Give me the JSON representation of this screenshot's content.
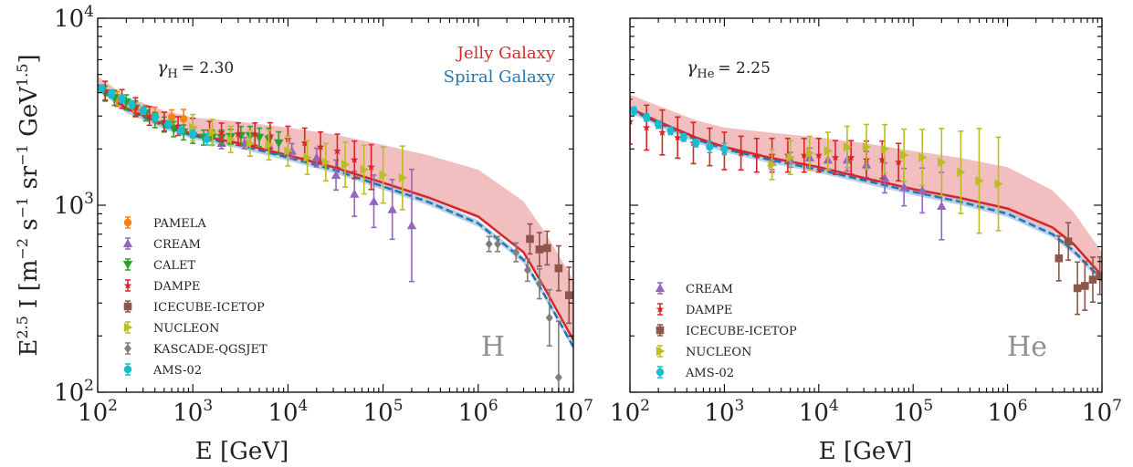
{
  "figure": {
    "ylabel_main": "E",
    "ylabel_exp": "2.5",
    "ylabel_rest": " I [m",
    "ylabel_units": [
      "−2",
      "−1",
      "−1",
      "1.5"
    ],
    "ylabel_parts": [
      " s",
      " sr",
      " GeV"
    ],
    "ylabel_close": "]",
    "xlabel": "E [GeV]"
  },
  "colors": {
    "jelly": "#d62728",
    "jelly_band": "#f2b7b8",
    "spiral": "#1f77b4",
    "spiral_band": "#a9c4e0",
    "PAMELA": "#ff7f0e",
    "CREAM": "#9467bd",
    "CALET": "#2ca02c",
    "DAMPE": "#d62728",
    "ICECUBE-ICETOP": "#8c564b",
    "NUCLEON": "#bcbd22",
    "KASCADE-QGSJET": "#7f7f7f",
    "AMS-02": "#17becf"
  },
  "chart_data": [
    {
      "type": "scatter",
      "panel": "H",
      "gamma_label": "γ",
      "gamma_sub": "H",
      "gamma_value": "= 2.30",
      "species_label": "H",
      "model_labels": [
        "Jelly Galaxy",
        "Spiral Galaxy"
      ],
      "x_scale": "log",
      "y_scale": "log",
      "xlim": [
        100,
        10000000
      ],
      "ylim": [
        100,
        10000
      ],
      "xticks": [
        {
          "base": "10",
          "exp": "2"
        },
        {
          "base": "10",
          "exp": "3"
        },
        {
          "base": "10",
          "exp": "4"
        },
        {
          "base": "10",
          "exp": "5"
        },
        {
          "base": "10",
          "exp": "6"
        },
        {
          "base": "10",
          "exp": "7"
        }
      ],
      "yticks": [
        {
          "base": "10",
          "exp": "2"
        },
        {
          "base": "10",
          "exp": "3"
        },
        {
          "base": "10",
          "exp": "4"
        }
      ],
      "legend": [
        "PAMELA",
        "CREAM",
        "CALET",
        "DAMPE",
        "ICECUBE-ICETOP",
        "NUCLEON",
        "KASCADE-QGSJET",
        "AMS-02"
      ],
      "models": {
        "jelly": {
          "x": [
            100,
            200,
            500,
            1000,
            3000,
            10000,
            30000,
            100000,
            300000,
            1000000,
            3000000,
            5000000,
            10000000
          ],
          "y": [
            4400,
            3300,
            2700,
            2400,
            2150,
            1850,
            1600,
            1320,
            1100,
            870,
            560,
            360,
            190
          ]
        },
        "jelly_band": {
          "x": [
            100,
            200,
            500,
            1000,
            3000,
            10000,
            30000,
            100000,
            300000,
            1000000,
            3000000,
            5000000,
            10000000
          ],
          "lo": [
            4200,
            3200,
            2650,
            2350,
            2100,
            1800,
            1550,
            1290,
            1080,
            850,
            560,
            370,
            190
          ],
          "hi": [
            4900,
            3800,
            3200,
            2950,
            2800,
            2600,
            2400,
            2100,
            1850,
            1550,
            1050,
            720,
            400
          ]
        },
        "spiral": {
          "x": [
            100,
            200,
            500,
            1000,
            3000,
            10000,
            30000,
            100000,
            300000,
            1000000,
            3000000,
            5000000,
            10000000
          ],
          "y": [
            4300,
            3250,
            2650,
            2350,
            2100,
            1800,
            1550,
            1260,
            1040,
            800,
            510,
            330,
            175
          ]
        }
      },
      "series": [
        {
          "name": "PAMELA",
          "marker": "circle",
          "x": [
            160,
            250,
            400,
            600,
            800
          ],
          "y": [
            3700,
            3250,
            3050,
            2950,
            2900
          ],
          "err": [
            0.04,
            0.04,
            0.04,
            0.04,
            0.05
          ]
        },
        {
          "name": "CREAM",
          "marker": "triangle-up",
          "x": [
            2000,
            3500,
            6300,
            11000,
            20000,
            32000,
            50000,
            80000,
            125000,
            200000
          ],
          "y": [
            2150,
            2150,
            2100,
            1950,
            1800,
            1450,
            1150,
            1050,
            950,
            780
          ],
          "err": [
            0.03,
            0.03,
            0.03,
            0.04,
            0.05,
            0.08,
            0.12,
            0.14,
            0.16,
            0.3
          ]
        },
        {
          "name": "CALET",
          "marker": "triangle-down",
          "x": [
            120,
            150,
            200,
            250,
            320,
            400,
            500,
            630,
            800,
            1000,
            1300,
            1600,
            2000,
            2500,
            3200,
            4000,
            5000,
            6300,
            8000
          ],
          "y": [
            3950,
            3750,
            3550,
            3300,
            3100,
            2850,
            2700,
            2550,
            2450,
            2350,
            2300,
            2300,
            2300,
            2320,
            2350,
            2350,
            2300,
            2250,
            2150
          ],
          "err": [
            0.04,
            0.04,
            0.04,
            0.04,
            0.04,
            0.04,
            0.04,
            0.04,
            0.04,
            0.04,
            0.04,
            0.04,
            0.04,
            0.04,
            0.05,
            0.05,
            0.05,
            0.06,
            0.06
          ]
        },
        {
          "name": "DAMPE",
          "marker": "star",
          "x": [
            120,
            180,
            250,
            350,
            500,
            700,
            1000,
            1500,
            2000,
            3000,
            4500,
            6500,
            10000,
            15000,
            22000,
            33000,
            50000,
            75000
          ],
          "y": [
            4100,
            3700,
            3350,
            3000,
            2800,
            2650,
            2600,
            2500,
            2450,
            2400,
            2400,
            2350,
            2250,
            2150,
            2050,
            1950,
            1750,
            1600
          ],
          "err": [
            0.05,
            0.05,
            0.05,
            0.05,
            0.05,
            0.05,
            0.05,
            0.05,
            0.05,
            0.06,
            0.06,
            0.07,
            0.07,
            0.08,
            0.08,
            0.09,
            0.1,
            0.12
          ]
        },
        {
          "name": "ICECUBE-ICETOP",
          "marker": "square",
          "x": [
            3500000,
            4400000,
            5300000,
            7000000,
            9000000
          ],
          "y": [
            660,
            580,
            590,
            460,
            330
          ],
          "err": [
            0.08,
            0.09,
            0.09,
            0.12,
            0.15
          ]
        },
        {
          "name": "NUCLEON",
          "marker": "triangle-right",
          "x": [
            1000,
            1600,
            2500,
            4000,
            6300,
            10000,
            16000,
            25000,
            40000,
            63000,
            100000,
            160000
          ],
          "y": [
            2600,
            2450,
            2250,
            2150,
            2100,
            1950,
            1800,
            1700,
            1650,
            1550,
            1450,
            1400
          ],
          "err": [
            0.07,
            0.07,
            0.07,
            0.07,
            0.08,
            0.08,
            0.09,
            0.1,
            0.12,
            0.13,
            0.15,
            0.17
          ]
        },
        {
          "name": "KASCADE-QGSJET",
          "marker": "diamond",
          "x": [
            1300000,
            1600000,
            2500000,
            3300000,
            4400000,
            5600000,
            7000000
          ],
          "y": [
            620,
            620,
            560,
            450,
            380,
            250,
            120
          ],
          "err": [
            0.04,
            0.04,
            0.05,
            0.06,
            0.08,
            0.15,
            0.3
          ]
        },
        {
          "name": "AMS-02",
          "marker": "circle",
          "x": [
            110,
            140,
            180,
            230,
            300,
            400,
            550,
            750,
            1000,
            1400
          ],
          "y": [
            4200,
            3950,
            3700,
            3450,
            3200,
            2950,
            2700,
            2500,
            2400,
            2250
          ],
          "err": [
            0.02,
            0.02,
            0.02,
            0.02,
            0.02,
            0.02,
            0.02,
            0.02,
            0.02,
            0.03
          ]
        }
      ]
    },
    {
      "type": "scatter",
      "panel": "He",
      "gamma_label": "γ",
      "gamma_sub": "He",
      "gamma_value": "= 2.25",
      "species_label": "He",
      "x_scale": "log",
      "y_scale": "log",
      "xlim": [
        100,
        10000000
      ],
      "ylim": [
        100,
        10000
      ],
      "xticks": [
        {
          "base": "10",
          "exp": "2"
        },
        {
          "base": "10",
          "exp": "3"
        },
        {
          "base": "10",
          "exp": "4"
        },
        {
          "base": "10",
          "exp": "5"
        },
        {
          "base": "10",
          "exp": "6"
        },
        {
          "base": "10",
          "exp": "7"
        }
      ],
      "legend": [
        "CREAM",
        "DAMPE",
        "ICECUBE-ICETOP",
        "NUCLEON",
        "AMS-02"
      ],
      "models": {
        "jelly": {
          "x": [
            100,
            200,
            500,
            1000,
            3000,
            10000,
            30000,
            100000,
            300000,
            1000000,
            3000000,
            5000000,
            10000000
          ],
          "y": [
            3300,
            2800,
            2300,
            2050,
            1800,
            1600,
            1400,
            1220,
            1100,
            960,
            760,
            620,
            420
          ]
        },
        "jelly_band": {
          "x": [
            100,
            200,
            500,
            1000,
            3000,
            10000,
            30000,
            100000,
            300000,
            1000000,
            3000000,
            5000000,
            10000000
          ],
          "lo": [
            3200,
            2700,
            2250,
            2000,
            1750,
            1550,
            1350,
            1180,
            1060,
            920,
            730,
            600,
            410
          ],
          "hi": [
            3900,
            3400,
            2850,
            2600,
            2450,
            2300,
            2150,
            1950,
            1800,
            1600,
            1200,
            920,
            560
          ]
        },
        "spiral": {
          "x": [
            100,
            200,
            500,
            1000,
            3000,
            10000,
            30000,
            100000,
            300000,
            1000000,
            3000000,
            5000000,
            10000000
          ],
          "y": [
            3250,
            2750,
            2250,
            2000,
            1750,
            1550,
            1360,
            1180,
            1050,
            900,
            700,
            570,
            400
          ]
        }
      },
      "series": [
        {
          "name": "CREAM",
          "marker": "triangle-up",
          "x": [
            3200,
            5000,
            8000,
            12500,
            20000,
            32000,
            50000,
            80000,
            125000,
            200000
          ],
          "y": [
            1700,
            1750,
            1800,
            1750,
            1750,
            1650,
            1400,
            1250,
            1200,
            990
          ],
          "err": [
            0.04,
            0.04,
            0.05,
            0.05,
            0.06,
            0.07,
            0.08,
            0.1,
            0.12,
            0.18
          ]
        },
        {
          "name": "DAMPE",
          "marker": "star",
          "x": [
            100,
            150,
            220,
            320,
            470,
            700,
            1000,
            1500,
            2200,
            3200,
            4700,
            7000,
            10000,
            15000,
            22000,
            32000,
            47000,
            70000
          ],
          "y": [
            2800,
            2600,
            2450,
            2300,
            2150,
            2050,
            1950,
            1900,
            1850,
            1850,
            1850,
            1850,
            1850,
            1800,
            1800,
            1750,
            1750,
            1700
          ],
          "err": [
            0.12,
            0.12,
            0.12,
            0.11,
            0.11,
            0.1,
            0.1,
            0.09,
            0.09,
            0.09,
            0.09,
            0.09,
            0.09,
            0.09,
            0.09,
            0.1,
            0.1,
            0.1
          ]
        },
        {
          "name": "ICECUBE-ICETOP",
          "marker": "square",
          "x": [
            3500000,
            4400000,
            5500000,
            6600000,
            8000000,
            9500000
          ],
          "y": [
            520,
            640,
            360,
            370,
            400,
            420
          ],
          "err": [
            0.12,
            0.1,
            0.14,
            0.13,
            0.12,
            0.1
          ]
        },
        {
          "name": "NUCLEON",
          "marker": "triangle-right",
          "x": [
            3200,
            5000,
            8000,
            12500,
            20000,
            32000,
            50000,
            80000,
            125000,
            200000,
            320000,
            500000,
            800000
          ],
          "y": [
            1650,
            1800,
            1900,
            1950,
            2050,
            2050,
            2000,
            1850,
            1800,
            1700,
            1500,
            1350,
            1300
          ],
          "err": [
            0.08,
            0.09,
            0.09,
            0.1,
            0.11,
            0.12,
            0.13,
            0.14,
            0.15,
            0.18,
            0.22,
            0.28,
            0.25
          ]
        },
        {
          "name": "AMS-02",
          "marker": "circle",
          "x": [
            110,
            150,
            200,
            270,
            370,
            500,
            700,
            1000
          ],
          "y": [
            3200,
            2950,
            2700,
            2500,
            2300,
            2150,
            2050,
            2000
          ],
          "err": [
            0.02,
            0.02,
            0.02,
            0.02,
            0.02,
            0.02,
            0.03,
            0.03
          ]
        }
      ]
    }
  ]
}
